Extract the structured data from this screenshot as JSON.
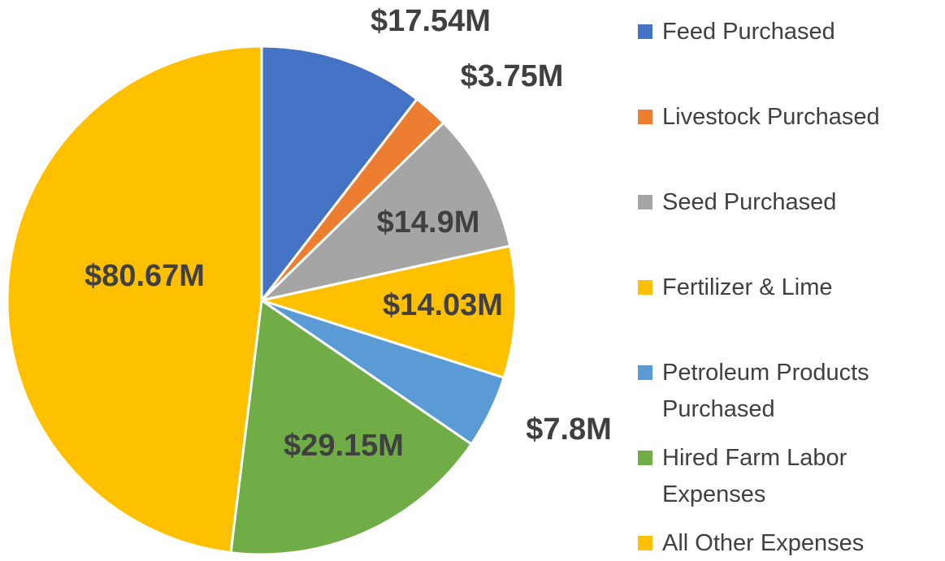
{
  "chart_data": {
    "type": "pie",
    "categories": [
      "Feed Purchased",
      "Livestock Purchased",
      "Seed Purchased",
      "Fertilizer & Lime",
      "Petroleum Products Purchased",
      "Hired Farm Labor Expenses",
      "All Other Expenses"
    ],
    "values": [
      17.54,
      3.75,
      14.9,
      14.03,
      7.8,
      29.15,
      80.67
    ],
    "value_labels": [
      "$17.54M",
      "$3.75M",
      "$14.9M",
      "$14.03M",
      "$7.8M",
      "$29.15M",
      "$80.67M"
    ],
    "colors": [
      "#4472c4",
      "#ed7d31",
      "#a5a5a5",
      "#ffc000",
      "#5b9bd5",
      "#70ad47",
      "#ffc000"
    ],
    "legend": "right"
  }
}
